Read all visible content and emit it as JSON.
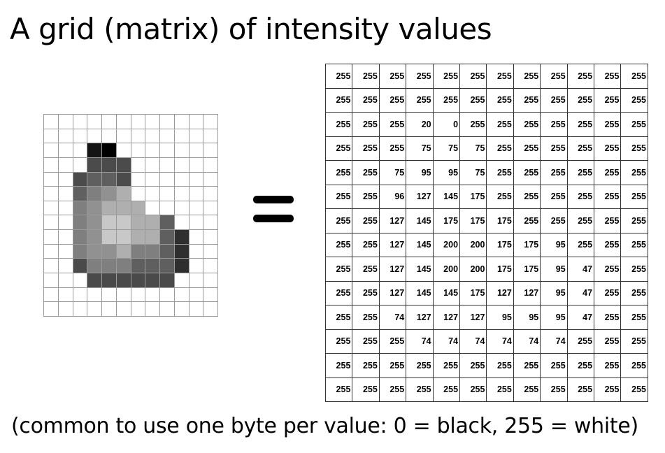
{
  "title": "A grid (matrix) of intensity values",
  "caption": "(common to use one byte per value: 0 = black, 255 = white)",
  "equals_symbol": "=",
  "matrix": [
    [
      255,
      255,
      255,
      255,
      255,
      255,
      255,
      255,
      255,
      255,
      255,
      255
    ],
    [
      255,
      255,
      255,
      255,
      255,
      255,
      255,
      255,
      255,
      255,
      255,
      255
    ],
    [
      255,
      255,
      255,
      20,
      0,
      255,
      255,
      255,
      255,
      255,
      255,
      255
    ],
    [
      255,
      255,
      255,
      75,
      75,
      75,
      255,
      255,
      255,
      255,
      255,
      255
    ],
    [
      255,
      255,
      75,
      95,
      95,
      75,
      255,
      255,
      255,
      255,
      255,
      255
    ],
    [
      255,
      255,
      96,
      127,
      145,
      175,
      255,
      255,
      255,
      255,
      255,
      255
    ],
    [
      255,
      255,
      127,
      145,
      175,
      175,
      175,
      255,
      255,
      255,
      255,
      255
    ],
    [
      255,
      255,
      127,
      145,
      200,
      200,
      175,
      175,
      95,
      255,
      255,
      255
    ],
    [
      255,
      255,
      127,
      145,
      200,
      200,
      175,
      175,
      95,
      47,
      255,
      255
    ],
    [
      255,
      255,
      127,
      145,
      145,
      175,
      127,
      127,
      95,
      47,
      255,
      255
    ],
    [
      255,
      255,
      74,
      127,
      127,
      127,
      95,
      95,
      95,
      47,
      255,
      255
    ],
    [
      255,
      255,
      255,
      74,
      74,
      74,
      74,
      74,
      74,
      255,
      255,
      255
    ],
    [
      255,
      255,
      255,
      255,
      255,
      255,
      255,
      255,
      255,
      255,
      255,
      255
    ],
    [
      255,
      255,
      255,
      255,
      255,
      255,
      255,
      255,
      255,
      255,
      255,
      255
    ]
  ]
}
